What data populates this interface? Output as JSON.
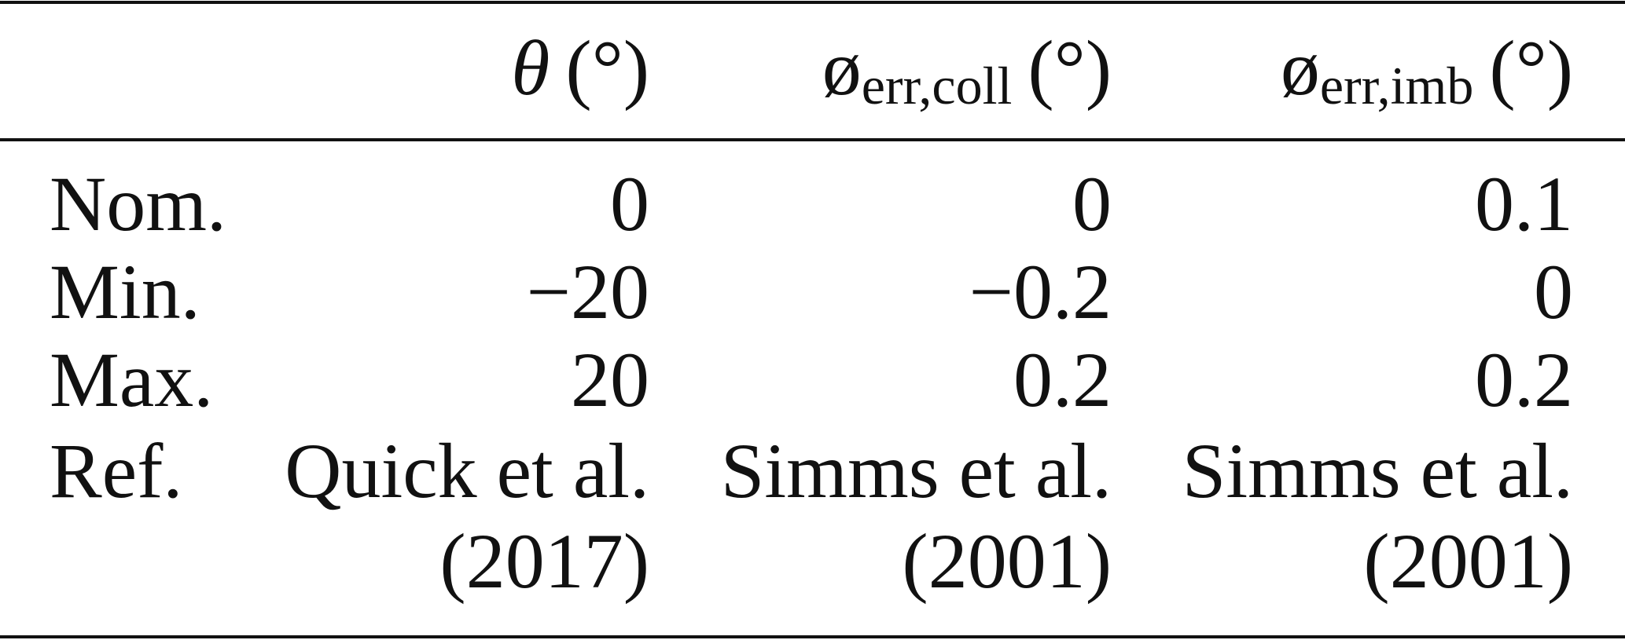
{
  "table": {
    "header": [
      {
        "symbol": "θ",
        "unit": "(°)"
      },
      {
        "symbol": "ø",
        "subscript": "err,coll",
        "unit": "(°)"
      },
      {
        "symbol": "ø",
        "subscript": "err,imb",
        "unit": "(°)"
      }
    ],
    "rows": [
      [
        "Nom.",
        "0",
        "0",
        "0.1"
      ],
      [
        "Min.",
        "−20",
        "−0.2",
        "0"
      ],
      [
        "Max.",
        "20",
        "0.2",
        "0.2"
      ]
    ],
    "reference": {
      "label": "Ref.",
      "cells": [
        [
          "Quick et al.",
          "(2017)"
        ],
        [
          "Simms et al.",
          "(2001)"
        ],
        [
          "Simms et al.",
          "(2001)"
        ]
      ]
    }
  }
}
